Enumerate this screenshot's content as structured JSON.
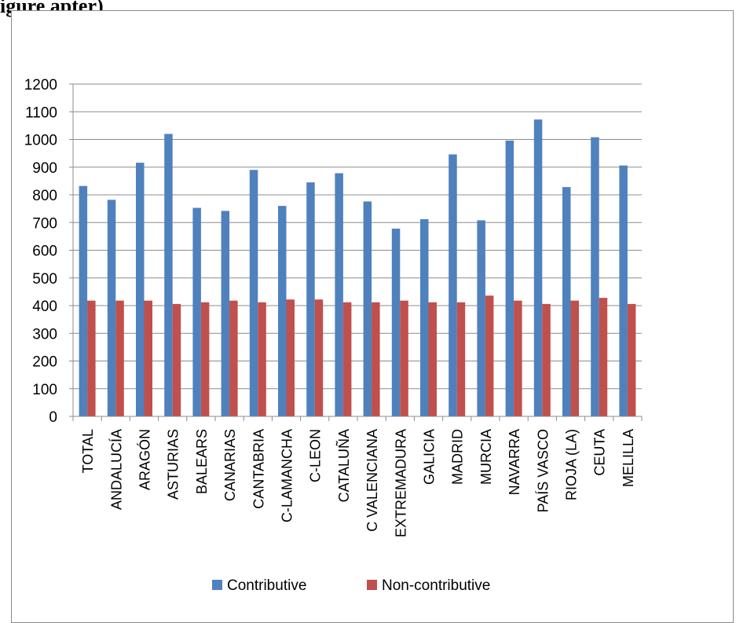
{
  "heading": "igure apter)",
  "chart_data": {
    "type": "bar",
    "categories": [
      "TOTAL",
      "ANDALUCÍA",
      "ARAGÓN",
      "ASTURIAS",
      "BALEARS",
      "CANARIAS",
      "CANTABRIA",
      "C-LAMANCHA",
      "C-LEON",
      "CATALUÑA",
      "C VALENCIANA",
      "EXTREMADURA",
      "GALICIA",
      "MADRID",
      "MURCIA",
      "NAVARRA",
      "PAÍS VASCO",
      "RIOJA (LA)",
      "CEUTA",
      "MELILLA"
    ],
    "series": [
      {
        "name": "Contributive",
        "color": "#4F81BD",
        "values": [
          832,
          782,
          916,
          1020,
          753,
          742,
          890,
          760,
          845,
          878,
          776,
          678,
          712,
          946,
          708,
          996,
          1072,
          828,
          1008,
          906
        ]
      },
      {
        "name": "Non-contributive",
        "color": "#C0504D",
        "values": [
          418,
          418,
          418,
          406,
          412,
          418,
          412,
          422,
          422,
          412,
          412,
          418,
          412,
          412,
          436,
          418,
          406,
          418,
          428,
          406
        ]
      }
    ],
    "yticks": [
      0,
      100,
      200,
      300,
      400,
      500,
      600,
      700,
      800,
      900,
      1000,
      1100,
      1200
    ],
    "ylim": [
      0,
      1200
    ],
    "grid": true,
    "legend_position": "bottom"
  }
}
